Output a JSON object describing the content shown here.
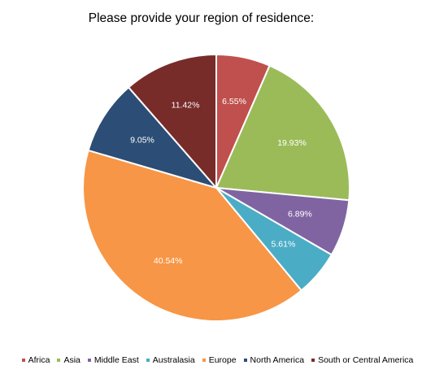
{
  "chart_data": {
    "type": "pie",
    "title": "Please provide your region of residence:",
    "slices": [
      {
        "name": "Africa",
        "value": 6.55,
        "label": "6.55%",
        "color": "#c0504d"
      },
      {
        "name": "Asia",
        "value": 19.93,
        "label": "19.93%",
        "color": "#9bbb59"
      },
      {
        "name": "Middle East",
        "value": 6.89,
        "label": "6.89%",
        "color": "#8064a2"
      },
      {
        "name": "Australasia",
        "value": 5.61,
        "label": "5.61%",
        "color": "#4bacc6"
      },
      {
        "name": "Europe",
        "value": 40.54,
        "label": "40.54%",
        "color": "#f79646"
      },
      {
        "name": "North America",
        "value": 9.05,
        "label": "9.05%",
        "color": "#2c4d75"
      },
      {
        "name": "South or Central America",
        "value": 11.42,
        "label": "11.42%",
        "color": "#772c2a"
      }
    ],
    "legend_position": "bottom",
    "start_angle": "12 o'clock",
    "direction": "clockwise"
  }
}
